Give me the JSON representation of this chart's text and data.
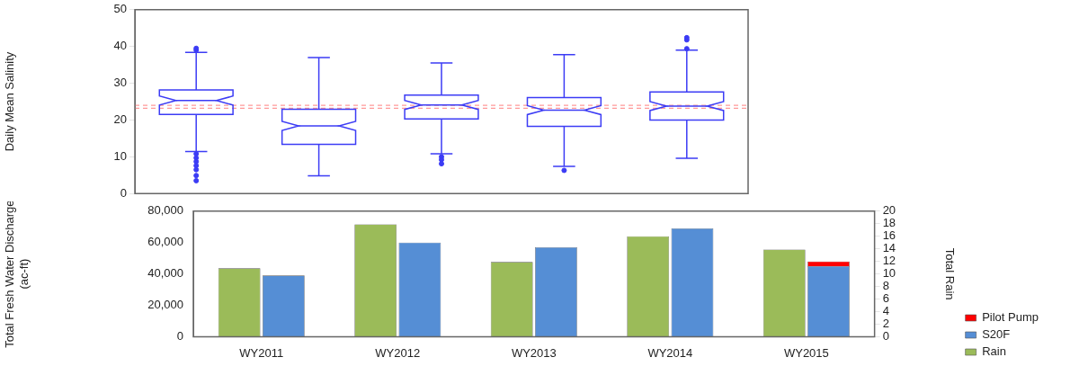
{
  "chart_data": [
    {
      "type": "box",
      "ylabel": "Daily Mean Salinity",
      "categories": [
        null,
        null,
        null,
        null,
        null
      ],
      "tick_labels": "y",
      "color": "#3c3cf5",
      "ylim": [
        0,
        50
      ],
      "yticks": [
        0,
        10,
        20,
        30,
        40,
        50
      ],
      "grid": false,
      "boxes": [
        {
          "low": 11.4,
          "q1": 21.5,
          "median": 25.3,
          "q3": 28.2,
          "high": 38.4,
          "outliers": [
            39.0,
            39.5,
            10.8,
            9.7,
            8.7,
            7.6,
            6.5,
            4.9,
            3.5
          ]
        },
        {
          "low": 4.8,
          "q1": 13.4,
          "median": 18.4,
          "q3": 22.9,
          "high": 37.0
        },
        {
          "low": 10.8,
          "q1": 20.3,
          "median": 24.1,
          "q3": 26.8,
          "high": 35.5,
          "outliers": [
            10.0,
            9.2,
            8.1
          ]
        },
        {
          "low": 7.4,
          "q1": 18.3,
          "median": 22.7,
          "q3": 26.1,
          "high": 37.8,
          "outliers": [
            6.3
          ]
        },
        {
          "low": 9.6,
          "q1": 20.0,
          "median": 23.8,
          "q3": 27.6,
          "high": 39.0,
          "outliers": [
            39.4,
            41.8,
            42.4
          ]
        }
      ],
      "ref_lines": [
        {
          "axis": "y",
          "value": 24.0,
          "color": "#ff9999",
          "line_style": "dashed"
        },
        {
          "axis": "y",
          "value": 23.2,
          "color": "#ff9999",
          "line_style": "dashed"
        }
      ]
    },
    {
      "type": "bar",
      "categories": [
        "WY2011",
        "WY2012",
        "WY2013",
        "WY2014",
        "WY2015"
      ],
      "ylabel": "Total Fresh Water Discharge\n(ac-ft)",
      "y2label": "Total Rain",
      "stacked": true,
      "legend": "right",
      "grid": false,
      "ylim": [
        0,
        80000
      ],
      "yticks": [
        0,
        {
          "value": 20000,
          "label": "20,000"
        },
        {
          "value": 40000,
          "label": "40,000"
        },
        {
          "value": 60000,
          "label": "60,000"
        },
        {
          "value": 80000,
          "label": "80,000"
        }
      ],
      "y2lim": [
        0,
        20
      ],
      "y2ticks": [
        0,
        2,
        4,
        6,
        8,
        10,
        12,
        14,
        16,
        18,
        20
      ],
      "series": [
        {
          "name": "Rain",
          "color": "#9bbb59",
          "axis": "y2",
          "values": [
            10.9,
            17.9,
            11.9,
            16.0,
            13.9
          ]
        },
        {
          "name": "S20F",
          "color": "#558ed5",
          "values": [
            39000,
            60000,
            57000,
            69000,
            45000
          ]
        },
        {
          "name": "Pilot Pump",
          "color": "#ff0000",
          "values": [
            0,
            0,
            0,
            0,
            3000
          ]
        }
      ]
    }
  ]
}
